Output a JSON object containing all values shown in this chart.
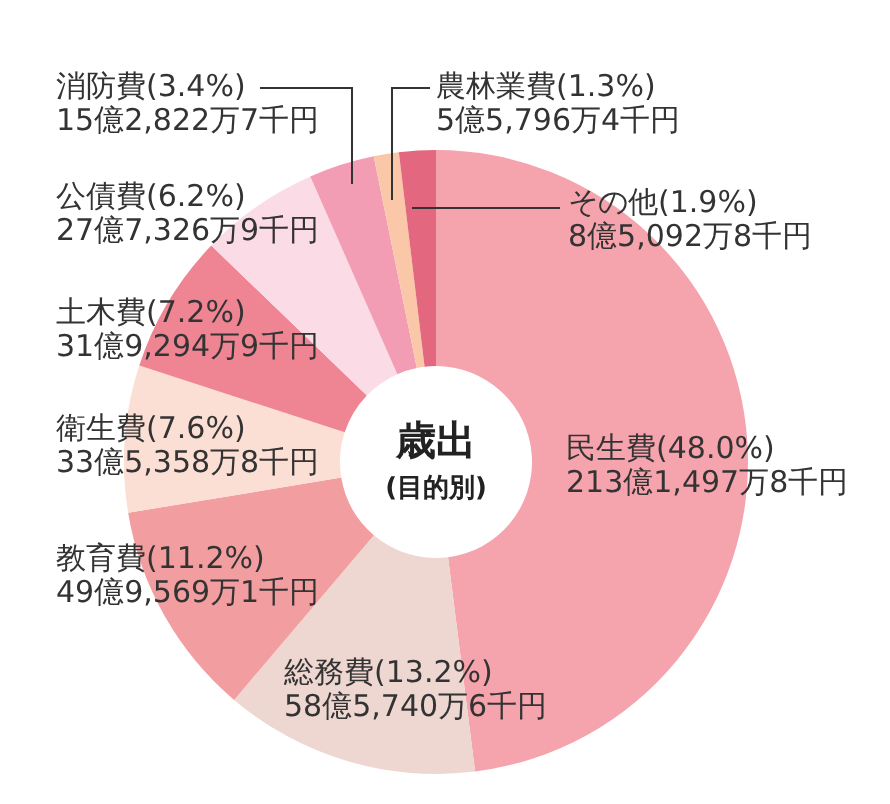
{
  "chart_data": {
    "type": "donut",
    "title": "歳出",
    "subtitle": "(目的別)",
    "categories": [
      "民生費",
      "総務費",
      "教育費",
      "衛生費",
      "土木費",
      "公債費",
      "消防費",
      "農林業費",
      "その他"
    ],
    "values": [
      48.0,
      13.2,
      11.2,
      7.6,
      7.2,
      6.2,
      3.4,
      1.3,
      1.9
    ],
    "colors": [
      "#f5a3ac",
      "#eed6d1",
      "#f29d9f",
      "#fbdfd4",
      "#ef8593",
      "#fbdbe6",
      "#f39db5",
      "#fac8a8",
      "#e3687f"
    ],
    "value_labels": [
      "(48.0%)\n213億1,497万8千円",
      "(13.2%)\n58億5,740万6千円",
      "(11.2%)\n49億9,569万1千円",
      "(7.6%)\n33億5,358万8千円",
      "(7.2%)\n31億9,294万9千円",
      "(6.2%)\n27億7,326万9千円",
      "(3.4%)\n15億2,822万7千円",
      "(1.3%)\n5億5,796万4千円",
      "(1.9%)\n8億5,092万8千円"
    ]
  }
}
